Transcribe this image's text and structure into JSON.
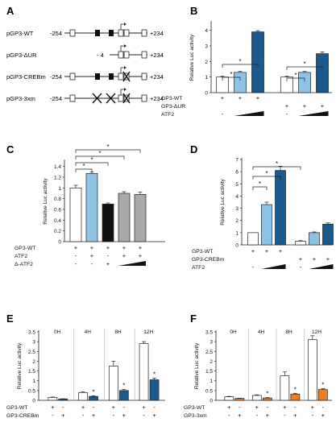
{
  "panels": {
    "A": {
      "letter": "A",
      "constructs": [
        {
          "name": "pGP3-WT",
          "start": "-254",
          "end": "+234"
        },
        {
          "name": "pGP3-ΔUR",
          "start": "- 4",
          "end": "+234"
        },
        {
          "name": "pGP3-CREBm",
          "start": "-254",
          "end": "+234"
        },
        {
          "name": "pGP3-3xm",
          "start": "-254",
          "end": "+234"
        }
      ]
    },
    "B": {
      "letter": "B"
    },
    "C": {
      "letter": "C"
    },
    "D": {
      "letter": "D"
    },
    "E": {
      "letter": "E"
    },
    "F": {
      "letter": "F"
    }
  },
  "colors": {
    "white": "#ffffff",
    "light_blue": "#8ec3e8",
    "dark_blue": "#1a5a8e",
    "black": "#111111",
    "gray": "#a9a9a9",
    "orange": "#ef7d22"
  },
  "chart_data": [
    {
      "panel": "B",
      "type": "bar",
      "ylabel": "Relative Luc activity",
      "ylim": [
        0,
        4.5
      ],
      "yticks": [
        0,
        1,
        2,
        3,
        4
      ],
      "values": [
        1.0,
        1.3,
        3.9,
        1.0,
        1.3,
        2.5
      ],
      "errors": [
        0.05,
        0.06,
        0.08,
        0.05,
        0.06,
        0.12
      ],
      "bar_colors": [
        "white",
        "light_blue",
        "dark_blue",
        "white",
        "light_blue",
        "dark_blue"
      ],
      "significance": [
        "*",
        "*",
        "*",
        "*"
      ],
      "conditions": [
        {
          "label": "GP3-WT",
          "marks": [
            "+",
            "+",
            "+",
            "",
            "",
            ""
          ]
        },
        {
          "label": "GP3-ΔUR",
          "marks": [
            "",
            "",
            "",
            "+",
            "+",
            "+"
          ]
        },
        {
          "label": "ATF2",
          "marks": [
            "-",
            "ramp",
            "",
            "-",
            "ramp",
            ""
          ]
        }
      ]
    },
    {
      "panel": "C",
      "type": "bar",
      "ylabel": "Relative Luc activity",
      "ylim": [
        0,
        1.5
      ],
      "yticks": [
        0,
        0.2,
        0.4,
        0.6,
        0.8,
        1,
        1.2,
        1.4
      ],
      "values": [
        1.0,
        1.27,
        0.7,
        0.9,
        0.88
      ],
      "errors": [
        0.05,
        0.03,
        0.02,
        0.03,
        0.04
      ],
      "bar_colors": [
        "white",
        "light_blue",
        "black",
        "gray",
        "gray"
      ],
      "significance": [
        "*",
        "*",
        "*",
        "*"
      ],
      "conditions": [
        {
          "label": "GP3-WT",
          "marks": [
            "+",
            "+",
            "+",
            "+",
            "+"
          ]
        },
        {
          "label": "ATF2",
          "marks": [
            "-",
            "+",
            "-",
            "+",
            "+"
          ]
        },
        {
          "label": "Δ-ATF2",
          "marks": [
            "-",
            "-",
            "+",
            "ramp",
            ""
          ]
        }
      ]
    },
    {
      "panel": "D",
      "type": "bar",
      "ylabel": "Relative Luc activity",
      "ylim": [
        0,
        7
      ],
      "yticks": [
        0,
        1,
        2,
        3,
        4,
        5,
        6,
        7
      ],
      "values": [
        1.0,
        3.3,
        6.1,
        0.3,
        1.0,
        1.7
      ],
      "errors": [
        0.0,
        0.2,
        0.35,
        0.05,
        0.06,
        0.1
      ],
      "bar_colors": [
        "white",
        "light_blue",
        "dark_blue",
        "white",
        "light_blue",
        "dark_blue"
      ],
      "significance": [
        "*",
        "*",
        "*"
      ],
      "conditions": [
        {
          "label": "GP3-WT",
          "marks": [
            "+",
            "+",
            "+",
            "",
            "",
            ""
          ]
        },
        {
          "label": "GP3-CREBm",
          "marks": [
            "",
            "",
            "",
            "+",
            "+",
            "+"
          ]
        },
        {
          "label": "ATF2",
          "marks": [
            "-",
            "ramp",
            "",
            "-",
            "ramp",
            ""
          ]
        }
      ]
    },
    {
      "panel": "E",
      "type": "bar",
      "ylabel": "Relative Luc activity",
      "ylim": [
        0,
        3.5
      ],
      "yticks": [
        0,
        0.5,
        1,
        1.5,
        2,
        2.5,
        3,
        3.5
      ],
      "time_points": [
        "0H",
        "4H",
        "8H",
        "12H"
      ],
      "values": [
        0.15,
        0.07,
        0.4,
        0.2,
        1.75,
        0.5,
        2.9,
        1.05
      ],
      "errors": [
        0.02,
        0.01,
        0.03,
        0.03,
        0.25,
        0.05,
        0.1,
        0.08
      ],
      "bar_colors": [
        "white",
        "dark_blue",
        "white",
        "dark_blue",
        "white",
        "dark_blue",
        "white",
        "dark_blue"
      ],
      "significance": [
        "",
        "",
        "",
        "*",
        "",
        "*",
        "",
        "*"
      ],
      "conditions": [
        {
          "label": "GP3-WT",
          "marks": [
            "+",
            "-",
            "+",
            "-",
            "+",
            "-",
            "+",
            "-"
          ]
        },
        {
          "label": "GP3-CREBm",
          "marks": [
            "-",
            "+",
            "-",
            "+",
            "-",
            "+",
            "-",
            "+"
          ]
        }
      ]
    },
    {
      "panel": "F",
      "type": "bar",
      "ylabel": "Relative Luc activity",
      "ylim": [
        0,
        3.5
      ],
      "yticks": [
        0,
        0.5,
        1,
        1.5,
        2,
        2.5,
        3,
        3.5
      ],
      "time_points": [
        "0H",
        "4H",
        "8H",
        "12H"
      ],
      "values": [
        0.18,
        0.1,
        0.25,
        0.12,
        1.25,
        0.32,
        3.1,
        0.55
      ],
      "errors": [
        0.02,
        0.01,
        0.03,
        0.02,
        0.2,
        0.04,
        0.2,
        0.05
      ],
      "bar_colors": [
        "white",
        "orange",
        "white",
        "orange",
        "white",
        "orange",
        "white",
        "orange"
      ],
      "significance": [
        "",
        "",
        "",
        "*",
        "",
        "*",
        "",
        "*"
      ],
      "conditions": [
        {
          "label": "GP3-WT",
          "marks": [
            "+",
            "-",
            "+",
            "-",
            "+",
            "-",
            "+",
            "-"
          ]
        },
        {
          "label": "GP3-3xm",
          "marks": [
            "-",
            "+",
            "-",
            "+",
            "-",
            "+",
            "-",
            "+"
          ]
        }
      ]
    }
  ]
}
